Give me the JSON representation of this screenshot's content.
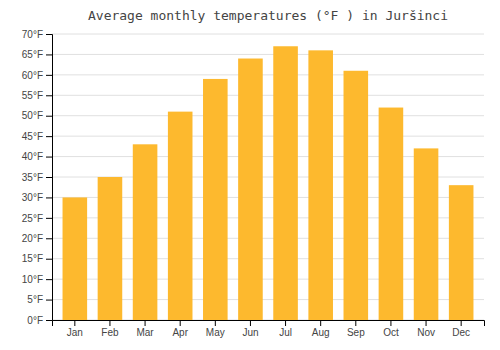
{
  "chart_data": {
    "type": "bar",
    "title": "Average monthly temperatures (°F ) in Juršinci",
    "categories": [
      "Jan",
      "Feb",
      "Mar",
      "Apr",
      "May",
      "Jun",
      "Jul",
      "Aug",
      "Sep",
      "Oct",
      "Nov",
      "Dec"
    ],
    "values": [
      30,
      35,
      43,
      51,
      59,
      64,
      67,
      66,
      61,
      52,
      42,
      33
    ],
    "color": "#FDB92E",
    "ylim": [
      0,
      70
    ],
    "yticks": [
      {
        "value": 0,
        "label": "0°F"
      },
      {
        "value": 5,
        "label": "5°F"
      },
      {
        "value": 10,
        "label": "10°F"
      },
      {
        "value": 15,
        "label": "15°F"
      },
      {
        "value": 20,
        "label": "20°F"
      },
      {
        "value": 25,
        "label": "25°F"
      },
      {
        "value": 30,
        "label": "30°F"
      },
      {
        "value": 35,
        "label": "35°F"
      },
      {
        "value": 40,
        "label": "40°F"
      },
      {
        "value": 45,
        "label": "45°F"
      },
      {
        "value": 50,
        "label": "50°F"
      },
      {
        "value": 55,
        "label": "55°F"
      },
      {
        "value": 60,
        "label": "60°F"
      },
      {
        "value": 65,
        "label": "65°F"
      },
      {
        "value": 70,
        "label": "70°F"
      }
    ],
    "grid": true
  }
}
